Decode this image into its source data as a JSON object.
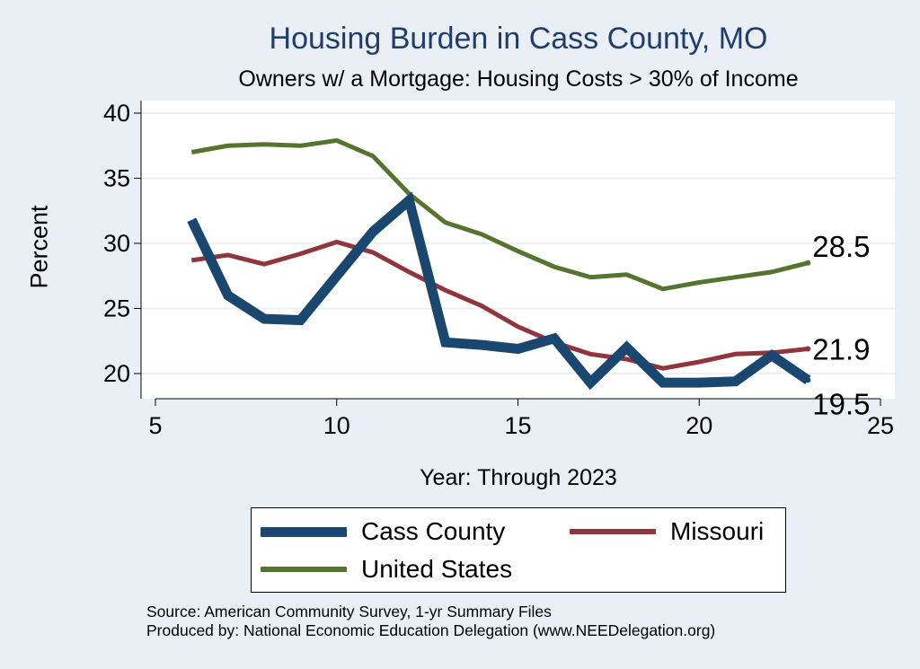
{
  "chart_data": {
    "type": "line",
    "title": "Housing Burden in Cass County, MO",
    "subtitle": "Owners w/ a Mortgage: Housing Costs > 30% of Income",
    "xlabel": "Year: Through 2023",
    "ylabel": "Percent",
    "xlim": [
      5,
      25
    ],
    "ylim": [
      18,
      41
    ],
    "xticks": [
      "5",
      "10",
      "15",
      "20",
      "25"
    ],
    "xtick_values": [
      5,
      10,
      15,
      20,
      25
    ],
    "yticks": [
      "20",
      "25",
      "30",
      "35",
      "40"
    ],
    "ytick_values": [
      20,
      25,
      30,
      35,
      40
    ],
    "grid": true,
    "legend_position": "bottom",
    "series": [
      {
        "name": "Cass County",
        "color": "#1a476f",
        "line": "thick",
        "x": [
          6,
          7,
          8,
          9,
          10,
          11,
          12,
          13,
          14,
          15,
          16,
          17,
          18,
          19,
          20,
          21,
          22,
          23
        ],
        "values": [
          31.8,
          26.0,
          24.2,
          24.1,
          27.5,
          30.9,
          33.3,
          22.4,
          22.2,
          21.9,
          22.7,
          19.3,
          22.0,
          19.3,
          19.3,
          19.4,
          21.4,
          19.5
        ],
        "end_label": "19.5"
      },
      {
        "name": "Missouri",
        "color": "#90353b",
        "line": "medium",
        "x": [
          6,
          7,
          8,
          9,
          10,
          11,
          12,
          13,
          14,
          15,
          16,
          17,
          18,
          19,
          20,
          21,
          22,
          23
        ],
        "values": [
          28.7,
          29.1,
          28.4,
          29.2,
          30.1,
          29.3,
          27.8,
          26.4,
          25.2,
          23.6,
          22.4,
          21.5,
          21.1,
          20.4,
          20.9,
          21.5,
          21.6,
          21.9
        ],
        "end_label": "21.9"
      },
      {
        "name": "United States",
        "color": "#55752f",
        "line": "medium",
        "x": [
          6,
          7,
          8,
          9,
          10,
          11,
          12,
          13,
          14,
          15,
          16,
          17,
          18,
          19,
          20,
          21,
          22,
          23
        ],
        "values": [
          37.0,
          37.5,
          37.6,
          37.5,
          37.9,
          36.7,
          33.8,
          31.6,
          30.7,
          29.4,
          28.2,
          27.4,
          27.6,
          26.5,
          27.0,
          27.4,
          27.8,
          28.5
        ],
        "end_label": "28.5"
      }
    ]
  },
  "legend": {
    "cass": "Cass County",
    "missouri": "Missouri",
    "us": "United States"
  },
  "source": {
    "line1": "Source: American Community Survey, 1-yr Summary Files",
    "line2": "Produced by: National Economic Education Delegation (www.NEEDelegation.org)"
  }
}
